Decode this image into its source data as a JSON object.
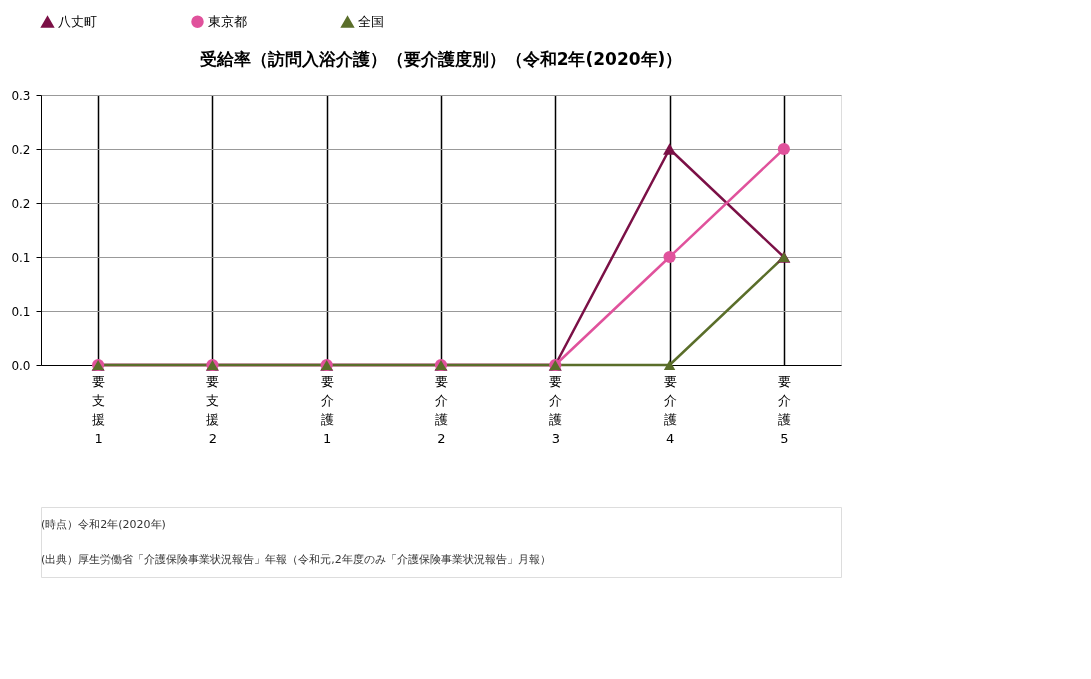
{
  "chart_data": {
    "type": "line",
    "title": "受給率（訪問入浴介護）（要介護度別）（令和2年(2020年)）",
    "categories": [
      "要支援1",
      "要支援2",
      "要介護1",
      "要介護2",
      "要介護3",
      "要介護4",
      "要介護5"
    ],
    "series": [
      {
        "name": "八丈町",
        "color": "#7b1046",
        "marker": "triangle",
        "values": [
          0,
          0,
          0,
          0,
          0,
          0.2,
          0.1
        ]
      },
      {
        "name": "東京都",
        "color": "#e0529c",
        "marker": "circle",
        "values": [
          0,
          0,
          0,
          0,
          0,
          0.1,
          0.2
        ]
      },
      {
        "name": "全国",
        "color": "#5a6e2a",
        "marker": "triangle",
        "values": [
          0,
          0,
          0,
          0,
          0,
          0,
          0.1
        ]
      }
    ],
    "ylim": [
      0,
      0.25
    ],
    "yticks": [
      {
        "value": 0,
        "label": "0.0"
      },
      {
        "value": 0.05,
        "label": "0.1"
      },
      {
        "value": 0.1,
        "label": "0.1"
      },
      {
        "value": 0.15,
        "label": "0.2"
      },
      {
        "value": 0.2,
        "label": "0.2"
      },
      {
        "value": 0.25,
        "label": "0.3"
      }
    ],
    "grid": true,
    "legend": "top",
    "line_style": "solid",
    "annotations": [
      "(時点）令和2年(2020年)",
      "(出典）厚生労働省「介護保険事業状況報告」年報（令和元,2年度のみ「介護保険事業状況報告」月報）"
    ]
  }
}
